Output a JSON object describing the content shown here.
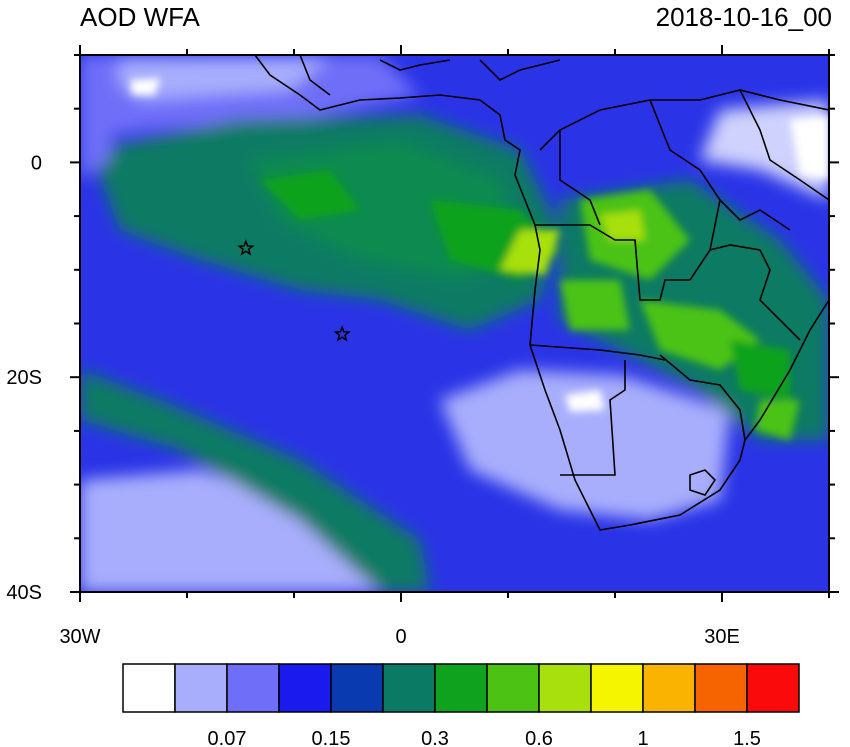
{
  "title_left": "AOD WFA",
  "title_right": "2018-10-16_00",
  "axes": {
    "x_ticks": [
      "30W",
      "0",
      "30E"
    ],
    "y_ticks": [
      "0",
      "20S",
      "40S"
    ]
  },
  "map": {
    "lon_range": [
      -30,
      40
    ],
    "lat_range": [
      -40,
      10
    ],
    "stars": [
      {
        "lon": -14.5,
        "lat": -8
      },
      {
        "lon": -5.5,
        "lat": -16
      }
    ]
  },
  "colorbar": {
    "colors": [
      "#ffffff",
      "#a8aefc",
      "#6e6ef8",
      "#1a1aee",
      "#0a3ab0",
      "#0a7a64",
      "#0fa21e",
      "#4cc214",
      "#a8e00e",
      "#f5f500",
      "#fab400",
      "#f56400",
      "#fa0a0a"
    ],
    "labels": [
      "0.07",
      "0.15",
      "0.3",
      "0.6",
      "1",
      "1.5"
    ]
  }
}
